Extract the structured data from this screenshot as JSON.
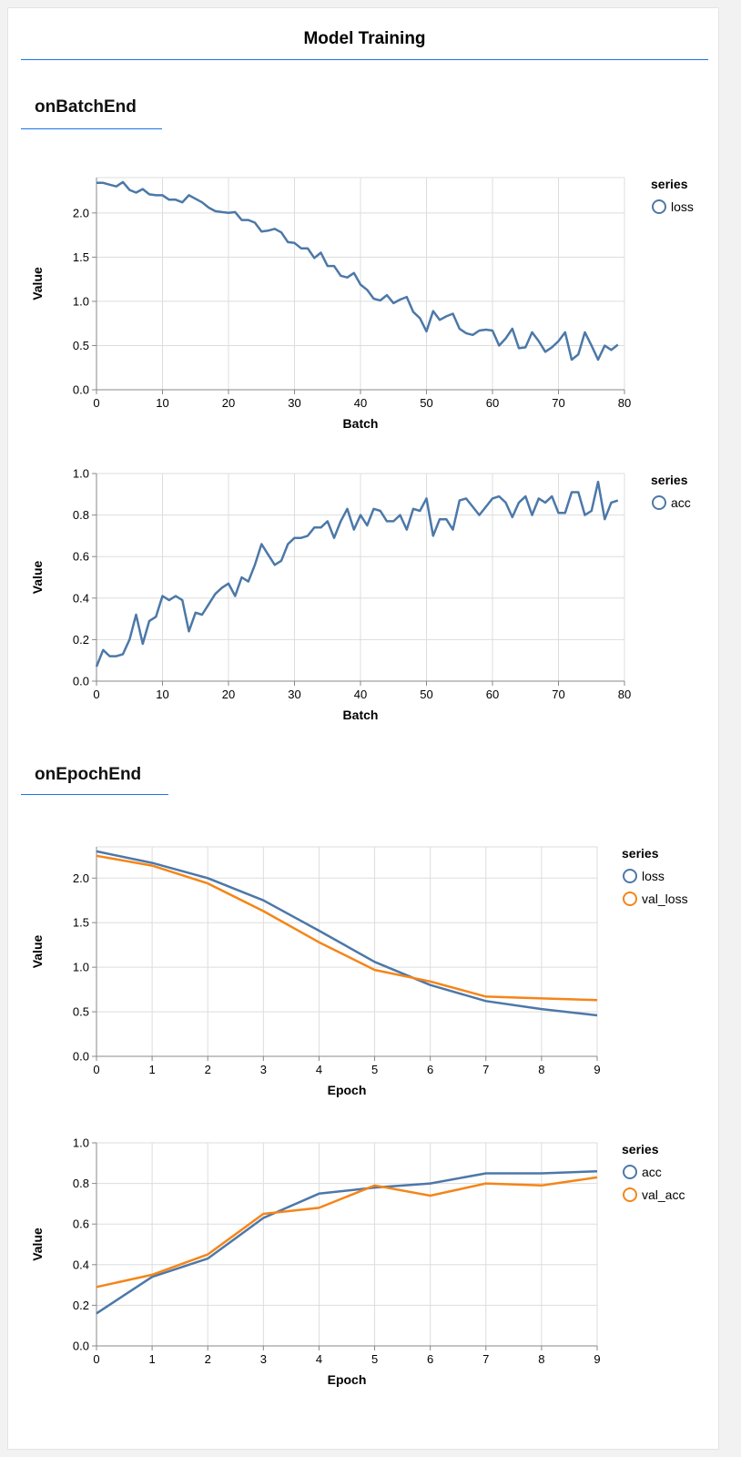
{
  "header": {
    "title": "Model Training"
  },
  "sections": [
    {
      "title": "onBatchEnd"
    },
    {
      "title": "onEpochEnd"
    }
  ],
  "colors": {
    "series1": "#4c78a8",
    "series2": "#f58518",
    "grid": "#dddddd",
    "accent": "#1a73e8"
  },
  "chart_data": [
    {
      "type": "line",
      "xlabel": "Batch",
      "ylabel": "Value",
      "xlim": [
        0,
        80
      ],
      "ylim": [
        0,
        2.4
      ],
      "xticks": [
        0,
        10,
        20,
        30,
        40,
        50,
        60,
        70,
        80
      ],
      "yticks": [
        0.0,
        0.5,
        1.0,
        1.5,
        2.0
      ],
      "grid": true,
      "legend": "right",
      "legend_title": "series",
      "series": [
        {
          "name": "loss",
          "values": [
            2.34,
            2.34,
            2.32,
            2.3,
            2.35,
            2.26,
            2.23,
            2.27,
            2.21,
            2.2,
            2.2,
            2.15,
            2.15,
            2.12,
            2.2,
            2.16,
            2.12,
            2.06,
            2.02,
            2.01,
            2.0,
            2.01,
            1.92,
            1.92,
            1.89,
            1.79,
            1.8,
            1.82,
            1.78,
            1.67,
            1.66,
            1.6,
            1.6,
            1.49,
            1.55,
            1.4,
            1.4,
            1.29,
            1.27,
            1.32,
            1.19,
            1.13,
            1.03,
            1.01,
            1.07,
            0.98,
            1.02,
            1.05,
            0.88,
            0.81,
            0.66,
            0.89,
            0.79,
            0.83,
            0.86,
            0.69,
            0.64,
            0.62,
            0.67,
            0.68,
            0.67,
            0.5,
            0.58,
            0.69,
            0.47,
            0.48,
            0.65,
            0.55,
            0.43,
            0.48,
            0.55,
            0.65,
            0.34,
            0.4,
            0.65,
            0.5,
            0.34,
            0.5,
            0.45,
            0.51
          ]
        }
      ]
    },
    {
      "type": "line",
      "xlabel": "Batch",
      "ylabel": "Value",
      "xlim": [
        0,
        80
      ],
      "ylim": [
        0,
        1.0
      ],
      "xticks": [
        0,
        10,
        20,
        30,
        40,
        50,
        60,
        70,
        80
      ],
      "yticks": [
        0.0,
        0.2,
        0.4,
        0.6,
        0.8,
        1.0
      ],
      "grid": true,
      "legend": "right",
      "legend_title": "series",
      "series": [
        {
          "name": "acc",
          "values": [
            0.07,
            0.15,
            0.12,
            0.12,
            0.13,
            0.2,
            0.32,
            0.18,
            0.29,
            0.31,
            0.41,
            0.39,
            0.41,
            0.39,
            0.24,
            0.33,
            0.32,
            0.37,
            0.42,
            0.45,
            0.47,
            0.41,
            0.5,
            0.48,
            0.56,
            0.66,
            0.61,
            0.56,
            0.58,
            0.66,
            0.69,
            0.69,
            0.7,
            0.74,
            0.74,
            0.77,
            0.69,
            0.77,
            0.83,
            0.73,
            0.8,
            0.75,
            0.83,
            0.82,
            0.77,
            0.77,
            0.8,
            0.73,
            0.83,
            0.82,
            0.88,
            0.7,
            0.78,
            0.78,
            0.73,
            0.87,
            0.88,
            0.84,
            0.8,
            0.84,
            0.88,
            0.89,
            0.86,
            0.79,
            0.86,
            0.89,
            0.8,
            0.88,
            0.86,
            0.89,
            0.81,
            0.81,
            0.91,
            0.91,
            0.8,
            0.82,
            0.96,
            0.78,
            0.86,
            0.87
          ]
        }
      ]
    },
    {
      "type": "line",
      "xlabel": "Epoch",
      "ylabel": "Value",
      "xlim": [
        0,
        9
      ],
      "ylim": [
        0,
        2.35
      ],
      "xticks": [
        0,
        1,
        2,
        3,
        4,
        5,
        6,
        7,
        8,
        9
      ],
      "yticks": [
        0.0,
        0.5,
        1.0,
        1.5,
        2.0
      ],
      "grid": true,
      "legend": "right",
      "legend_title": "series",
      "series": [
        {
          "name": "loss",
          "values": [
            2.3,
            2.17,
            2.0,
            1.75,
            1.41,
            1.06,
            0.8,
            0.62,
            0.53,
            0.46
          ]
        },
        {
          "name": "val_loss",
          "values": [
            2.25,
            2.14,
            1.94,
            1.63,
            1.28,
            0.97,
            0.84,
            0.67,
            0.65,
            0.63
          ]
        }
      ]
    },
    {
      "type": "line",
      "xlabel": "Epoch",
      "ylabel": "Value",
      "xlim": [
        0,
        9
      ],
      "ylim": [
        0,
        1.0
      ],
      "xticks": [
        0,
        1,
        2,
        3,
        4,
        5,
        6,
        7,
        8,
        9
      ],
      "yticks": [
        0.0,
        0.2,
        0.4,
        0.6,
        0.8,
        1.0
      ],
      "grid": true,
      "legend": "right",
      "legend_title": "series",
      "series": [
        {
          "name": "acc",
          "values": [
            0.16,
            0.34,
            0.43,
            0.63,
            0.75,
            0.78,
            0.8,
            0.85,
            0.85,
            0.86
          ]
        },
        {
          "name": "val_acc",
          "values": [
            0.29,
            0.35,
            0.45,
            0.65,
            0.68,
            0.79,
            0.74,
            0.8,
            0.79,
            0.83
          ]
        }
      ]
    }
  ]
}
